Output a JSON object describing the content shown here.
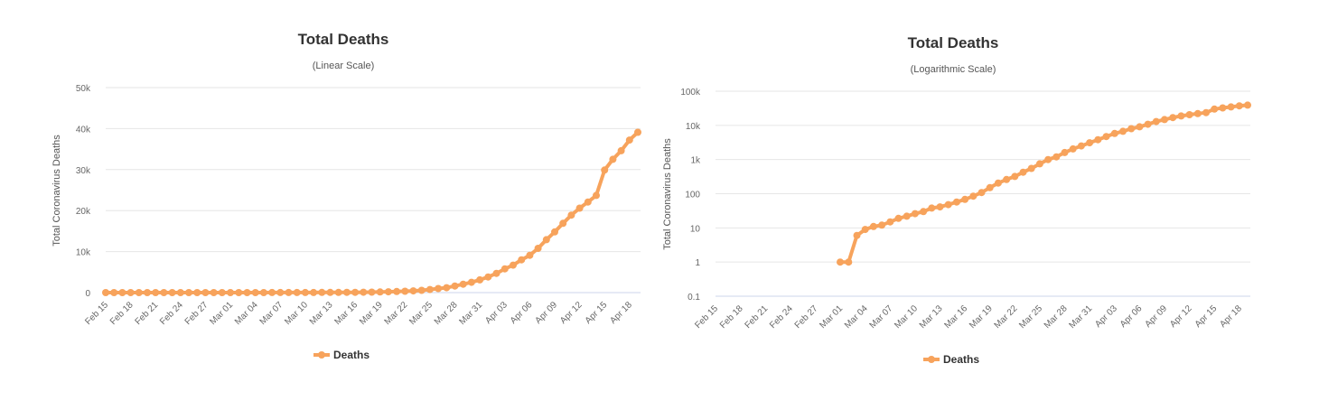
{
  "chart_data": [
    {
      "type": "line",
      "title": "Total Deaths",
      "subtitle": "(Linear Scale)",
      "ylabel": "Total Coronavirus Deaths",
      "yscale": "linear",
      "ylim": [
        0,
        50000
      ],
      "yticks": [
        0,
        10000,
        20000,
        30000,
        40000,
        50000
      ],
      "ytick_labels": [
        "0",
        "10k",
        "20k",
        "30k",
        "40k",
        "50k"
      ],
      "xtick_labels": [
        "Feb 15",
        "Feb 18",
        "Feb 21",
        "Feb 24",
        "Feb 27",
        "Mar 01",
        "Mar 04",
        "Mar 07",
        "Mar 10",
        "Mar 13",
        "Mar 16",
        "Mar 19",
        "Mar 22",
        "Mar 25",
        "Mar 28",
        "Mar 31",
        "Apr 03",
        "Apr 06",
        "Apr 09",
        "Apr 12",
        "Apr 15",
        "Apr 18"
      ],
      "legend": "Deaths",
      "color": "#f7a35c",
      "series": [
        {
          "name": "Deaths",
          "values": [
            0,
            0,
            0,
            0,
            0,
            0,
            0,
            0,
            0,
            0,
            0,
            0,
            0,
            0,
            0,
            1,
            1,
            6,
            9,
            11,
            12,
            15,
            19,
            22,
            26,
            30,
            38,
            41,
            48,
            57,
            68,
            85,
            108,
            150,
            205,
            260,
            320,
            425,
            550,
            750,
            1000,
            1200,
            1600,
            2050,
            2500,
            3100,
            3800,
            4700,
            5800,
            6700,
            8000,
            9100,
            10800,
            12900,
            14800,
            16900,
            18900,
            20600,
            22100,
            23700,
            29900,
            32500,
            34600,
            37200,
            39100
          ]
        }
      ]
    },
    {
      "type": "line",
      "title": "Total Deaths",
      "subtitle": "(Logarithmic Scale)",
      "ylabel": "Total Coronavirus Deaths",
      "yscale": "log",
      "ylim": [
        0.1,
        100000
      ],
      "yticks": [
        0.1,
        1,
        10,
        100,
        1000,
        10000,
        100000
      ],
      "ytick_labels": [
        "0.1",
        "1",
        "10",
        "100",
        "1k",
        "10k",
        "100k"
      ],
      "xtick_labels": [
        "Feb 15",
        "Feb 18",
        "Feb 21",
        "Feb 24",
        "Feb 27",
        "Mar 01",
        "Mar 04",
        "Mar 07",
        "Mar 10",
        "Mar 13",
        "Mar 16",
        "Mar 19",
        "Mar 22",
        "Mar 25",
        "Mar 28",
        "Mar 31",
        "Apr 03",
        "Apr 06",
        "Apr 09",
        "Apr 12",
        "Apr 15",
        "Apr 18"
      ],
      "legend": "Deaths",
      "color": "#f7a35c",
      "series": [
        {
          "name": "Deaths",
          "values": [
            0,
            0,
            0,
            0,
            0,
            0,
            0,
            0,
            0,
            0,
            0,
            0,
            0,
            0,
            0,
            1,
            1,
            6,
            9,
            11,
            12,
            15,
            19,
            22,
            26,
            30,
            38,
            41,
            48,
            57,
            68,
            85,
            108,
            150,
            205,
            260,
            320,
            425,
            550,
            750,
            1000,
            1200,
            1600,
            2050,
            2500,
            3100,
            3800,
            4700,
            5800,
            6700,
            8000,
            9100,
            10800,
            12900,
            14800,
            16900,
            18900,
            20600,
            22100,
            23700,
            29900,
            32500,
            34600,
            37200,
            39100
          ]
        }
      ]
    }
  ]
}
